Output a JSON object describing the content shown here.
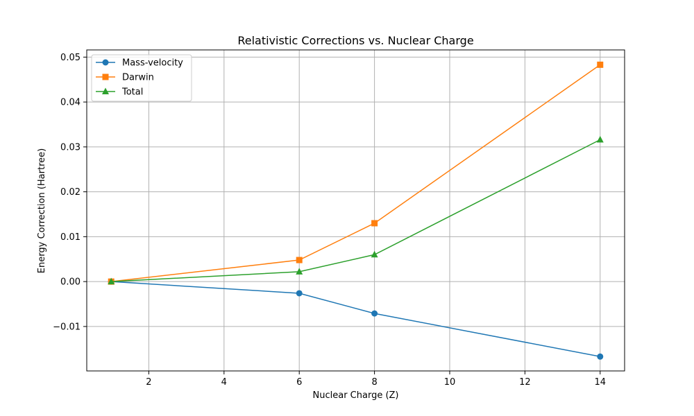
{
  "chart_data": {
    "type": "line",
    "title": "Relativistic Corrections vs. Nuclear Charge",
    "xlabel": "Nuclear Charge (Z)",
    "ylabel": "Energy Correction (Hartree)",
    "xlim": [
      0.35,
      14.65
    ],
    "ylim": [
      -0.0199,
      0.0516
    ],
    "xticks": [
      2,
      4,
      6,
      8,
      10,
      12,
      14
    ],
    "yticks": [
      -0.01,
      0.0,
      0.01,
      0.02,
      0.03,
      0.04,
      0.05
    ],
    "xtick_labels": [
      "2",
      "4",
      "6",
      "8",
      "10",
      "12",
      "14"
    ],
    "ytick_labels": [
      "−0.01",
      "0.00",
      "0.01",
      "0.02",
      "0.03",
      "0.04",
      "0.05"
    ],
    "grid": true,
    "legend_position": "top-left",
    "x": [
      1,
      6,
      8,
      14
    ],
    "series": [
      {
        "name": "Mass-velocity",
        "color": "#1f77b4",
        "marker": "circle",
        "values": [
          0.0,
          -0.0026,
          -0.0071,
          -0.0167
        ]
      },
      {
        "name": "Darwin",
        "color": "#ff7f0e",
        "marker": "square",
        "values": [
          0.0,
          0.0048,
          0.013,
          0.0483
        ]
      },
      {
        "name": "Total",
        "color": "#2ca02c",
        "marker": "triangle",
        "values": [
          0.0,
          0.0022,
          0.006,
          0.0316
        ]
      }
    ]
  }
}
